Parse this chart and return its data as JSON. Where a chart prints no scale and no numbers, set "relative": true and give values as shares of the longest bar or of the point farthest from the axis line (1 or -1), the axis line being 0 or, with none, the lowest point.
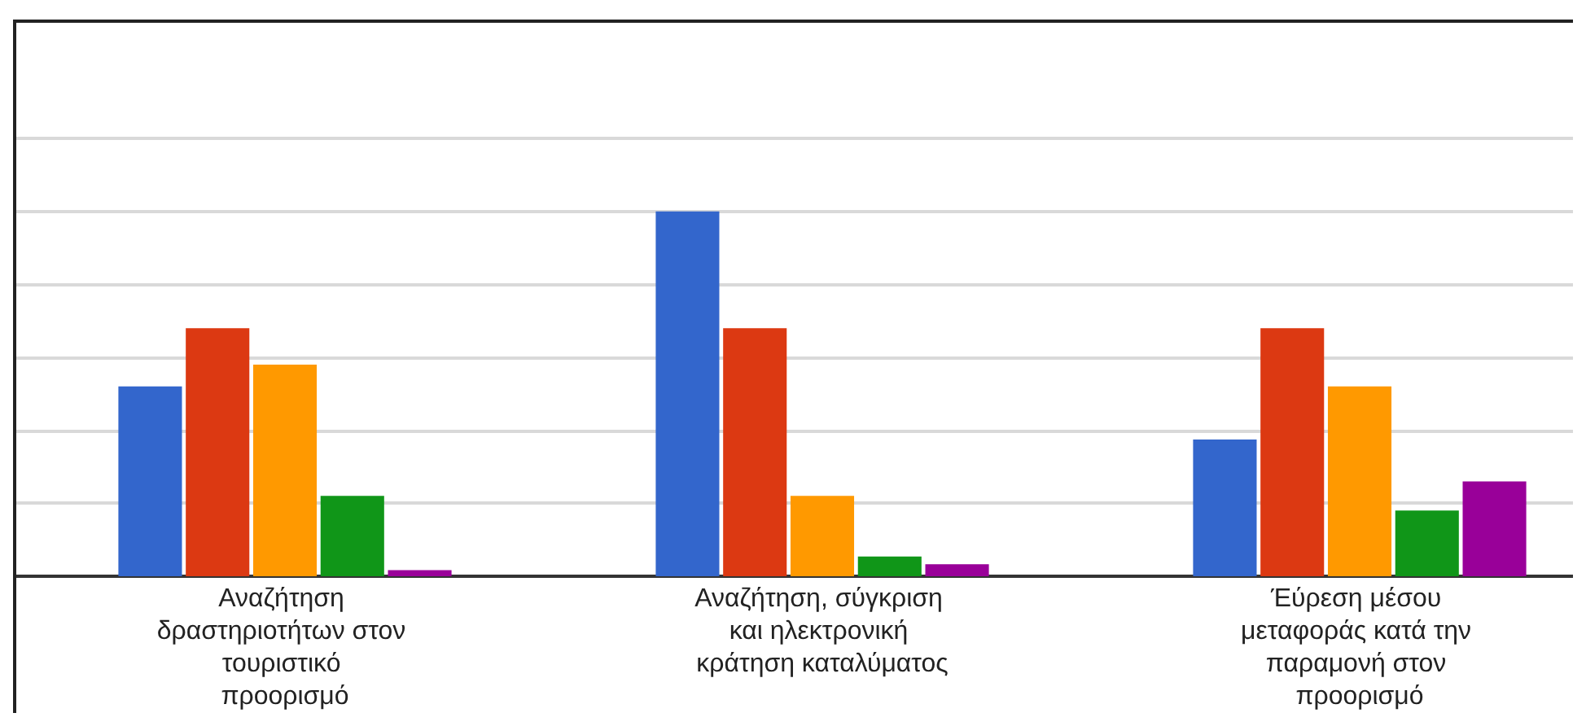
{
  "chart_data": {
    "type": "bar",
    "relative": true,
    "grid": "y",
    "categories": [
      "Αναζήτηση δραστηριοτήτων στον τουριστικό προορισμό",
      "Αναζήτηση, σύγκριση και ηλεκτρονική κράτηση καταλύματος",
      "Έύρεση μέσου μεταφοράς κατά την παραμονή στον προορισμό"
    ],
    "series": [
      {
        "color": "#3366cc",
        "values": [
          0.52,
          1,
          0.375
        ]
      },
      {
        "color": "#dc3912",
        "values": [
          0.68,
          0.68,
          0.68
        ]
      },
      {
        "color": "#ff9900",
        "values": [
          0.58,
          0.22,
          0.52
        ]
      },
      {
        "color": "#109618",
        "values": [
          0.22,
          0.054,
          0.18
        ]
      },
      {
        "color": "#990099",
        "values": [
          0.017,
          0.033,
          0.26
        ]
      }
    ]
  }
}
